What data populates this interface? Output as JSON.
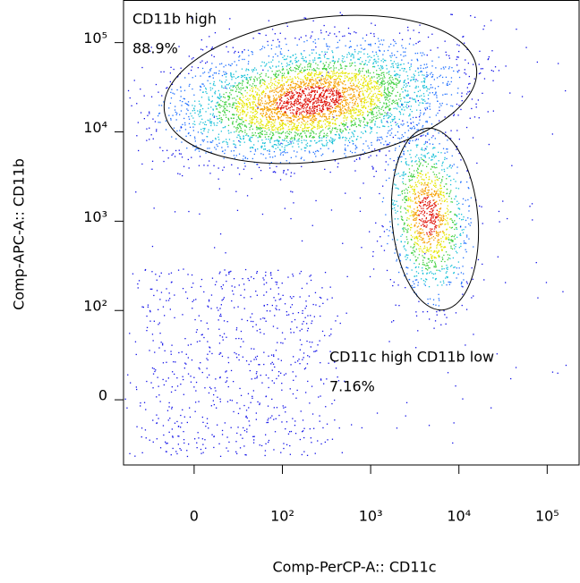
{
  "chart_data": {
    "type": "scatter",
    "x_label": "Comp-PerCP-A:: CD11c",
    "y_label": "Comp-APC-A:: CD11b",
    "xlim": [
      -80,
      230000
    ],
    "ylim": [
      -73,
      300000
    ],
    "xticks": [
      0,
      {
        "value": 100,
        "label": "10²"
      },
      {
        "value": 1000,
        "label": "10³"
      },
      {
        "value": 10000,
        "label": "10⁴"
      },
      {
        "value": 100000,
        "label": "10⁵"
      }
    ],
    "yticks": [
      0,
      {
        "value": 100,
        "label": "10²"
      },
      {
        "value": 1000,
        "label": "10³"
      },
      {
        "value": 10000,
        "label": "10⁴"
      },
      {
        "value": 100000,
        "label": "10⁵"
      }
    ],
    "gates": [
      {
        "name": "CD11b high",
        "value": 88.9,
        "value_label": "88.9%"
      },
      {
        "name": "CD11c high CD11b low",
        "value": 7.16,
        "value_label": "7.16%"
      }
    ]
  }
}
